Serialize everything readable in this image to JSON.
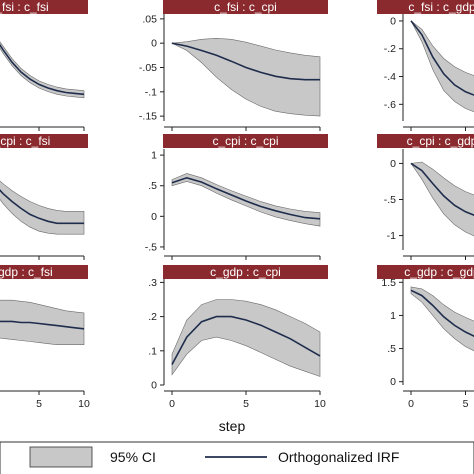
{
  "chart_data": {
    "type": "line",
    "xlabel": "step",
    "strip_color": "#8b2a2e",
    "band_color": "#c8c8c8",
    "line_color": "#1f2d4d",
    "legend": {
      "placement": "bottom",
      "ci_label": "95% CI",
      "irf_label": "Orthogonalized IRF"
    },
    "panels": [
      {
        "id": "r0c0",
        "title": "c_fsi : c_fsi",
        "show_xticks": false,
        "ylim": [
          -0.1,
          1.1
        ],
        "yticks": [],
        "ytick_labels": [],
        "x": [
          0,
          1,
          2,
          3,
          4,
          5,
          6,
          7,
          8,
          9,
          10
        ],
        "irf": [
          0.85,
          0.7,
          0.56,
          0.45,
          0.37,
          0.31,
          0.27,
          0.24,
          0.22,
          0.21,
          0.2
        ],
        "lower": [
          0.82,
          0.66,
          0.52,
          0.41,
          0.33,
          0.27,
          0.23,
          0.2,
          0.18,
          0.17,
          0.16
        ],
        "upper": [
          0.88,
          0.74,
          0.6,
          0.49,
          0.41,
          0.35,
          0.31,
          0.28,
          0.26,
          0.25,
          0.24
        ]
      },
      {
        "id": "r0c1",
        "title": "c_fsi : c_cpi",
        "show_xticks": false,
        "ylim": [
          -0.16,
          0.06
        ],
        "yticks": [
          0.05,
          0,
          -0.05,
          -0.1,
          -0.15
        ],
        "ytick_labels": [
          ".05",
          "0",
          "-.05",
          "-.1",
          "-.15"
        ],
        "x": [
          0,
          1,
          2,
          3,
          4,
          5,
          6,
          7,
          8,
          9,
          10
        ],
        "irf": [
          0,
          -0.006,
          -0.015,
          -0.025,
          -0.037,
          -0.05,
          -0.06,
          -0.068,
          -0.073,
          -0.075,
          -0.075
        ],
        "lower": [
          0,
          -0.015,
          -0.04,
          -0.07,
          -0.095,
          -0.115,
          -0.13,
          -0.14,
          -0.145,
          -0.148,
          -0.15
        ],
        "upper": [
          0,
          0.003,
          0.008,
          0.01,
          0.008,
          0.002,
          -0.006,
          -0.014,
          -0.02,
          -0.025,
          -0.028
        ]
      },
      {
        "id": "r0c2",
        "title": "c_fsi : c_gdp",
        "show_xticks": false,
        "ylim": [
          -0.72,
          0.05
        ],
        "yticks": [
          0,
          -0.2,
          -0.4,
          -0.6
        ],
        "ytick_labels": [
          "0",
          "-.2",
          "-.4",
          "-.6"
        ],
        "x": [
          0,
          1,
          2,
          3,
          4,
          5,
          6,
          7,
          8,
          9,
          10
        ],
        "irf": [
          0,
          -0.1,
          -0.26,
          -0.38,
          -0.46,
          -0.51,
          -0.54,
          -0.56,
          -0.57,
          -0.58,
          -0.58
        ],
        "lower": [
          0,
          -0.15,
          -0.35,
          -0.5,
          -0.58,
          -0.63,
          -0.66,
          -0.68,
          -0.69,
          -0.7,
          -0.7
        ],
        "upper": [
          0,
          -0.06,
          -0.18,
          -0.27,
          -0.33,
          -0.37,
          -0.4,
          -0.42,
          -0.43,
          -0.44,
          -0.44
        ]
      },
      {
        "id": "r1c0",
        "title": "c_cpi : c_fsi",
        "show_xticks": false,
        "ylim": [
          -0.12,
          0.9
        ],
        "yticks": [],
        "ytick_labels": [],
        "x": [
          0,
          1,
          2,
          3,
          4,
          5,
          6,
          7,
          8,
          9,
          10
        ],
        "irf": [
          0.55,
          0.45,
          0.37,
          0.3,
          0.24,
          0.2,
          0.17,
          0.15,
          0.15,
          0.15,
          0.15
        ],
        "lower": [
          0.47,
          0.35,
          0.25,
          0.17,
          0.11,
          0.07,
          0.05,
          0.04,
          0.04,
          0.04,
          0.04
        ],
        "upper": [
          0.63,
          0.55,
          0.48,
          0.42,
          0.37,
          0.33,
          0.3,
          0.28,
          0.27,
          0.27,
          0.27
        ]
      },
      {
        "id": "r1c1",
        "title": "c_cpi : c_cpi",
        "show_xticks": false,
        "ylim": [
          -0.55,
          1.1
        ],
        "yticks": [
          1,
          0.5,
          0,
          -0.5
        ],
        "ytick_labels": [
          "1",
          ".5",
          "0",
          "-.5"
        ],
        "x": [
          0,
          1,
          2,
          3,
          4,
          5,
          6,
          7,
          8,
          9,
          10
        ],
        "irf": [
          0.55,
          0.63,
          0.56,
          0.45,
          0.35,
          0.25,
          0.16,
          0.09,
          0.03,
          -0.02,
          -0.04
        ],
        "lower": [
          0.5,
          0.57,
          0.5,
          0.38,
          0.27,
          0.17,
          0.07,
          -0.01,
          -0.07,
          -0.12,
          -0.16
        ],
        "upper": [
          0.6,
          0.7,
          0.63,
          0.52,
          0.42,
          0.33,
          0.24,
          0.17,
          0.12,
          0.08,
          0.06
        ]
      },
      {
        "id": "r1c2",
        "title": "c_cpi : c_gdp",
        "show_xticks": false,
        "ylim": [
          -1.2,
          0.2
        ],
        "yticks": [
          0,
          -0.5,
          -1
        ],
        "ytick_labels": [
          "0",
          "-.5",
          "-1"
        ],
        "x": [
          0,
          1,
          2,
          3,
          4,
          5,
          6,
          7,
          8,
          9,
          10
        ],
        "irf": [
          0,
          -0.1,
          -0.28,
          -0.45,
          -0.58,
          -0.67,
          -0.73,
          -0.77,
          -0.8,
          -0.81,
          -0.82
        ],
        "lower": [
          0,
          -0.22,
          -0.48,
          -0.7,
          -0.85,
          -0.95,
          -1.02,
          -1.06,
          -1.09,
          -1.1,
          -1.1
        ],
        "upper": [
          0,
          0.02,
          -0.08,
          -0.2,
          -0.31,
          -0.39,
          -0.45,
          -0.49,
          -0.51,
          -0.53,
          -0.54
        ]
      },
      {
        "id": "r2c0",
        "title": "c_gdp : c_fsi",
        "show_xticks": true,
        "ylim": [
          -0.4,
          0.6
        ],
        "yticks": [],
        "ytick_labels": [],
        "x": [
          0,
          1,
          2,
          3,
          4,
          5,
          6,
          7,
          8,
          9,
          10
        ],
        "irf": [
          0.2,
          0.2,
          0.2,
          0.19,
          0.19,
          0.18,
          0.17,
          0.16,
          0.15,
          0.14,
          0.13
        ],
        "lower": [
          0.05,
          0.04,
          0.03,
          0.02,
          0.01,
          0.0,
          -0.01,
          -0.02,
          -0.02,
          -0.02,
          -0.02
        ],
        "upper": [
          0.4,
          0.4,
          0.4,
          0.39,
          0.38,
          0.36,
          0.34,
          0.32,
          0.3,
          0.29,
          0.28
        ]
      },
      {
        "id": "r2c1",
        "title": "c_gdp : c_cpi",
        "show_xticks": true,
        "ylim": [
          0,
          0.31
        ],
        "yticks": [
          0.3,
          0.2,
          0.1,
          0
        ],
        "ytick_labels": [
          ".3",
          ".2",
          ".1",
          "0"
        ],
        "x": [
          0,
          1,
          2,
          3,
          4,
          5,
          6,
          7,
          8,
          9,
          10
        ],
        "irf": [
          0.06,
          0.14,
          0.185,
          0.2,
          0.2,
          0.19,
          0.175,
          0.155,
          0.135,
          0.11,
          0.085
        ],
        "lower": [
          0.03,
          0.09,
          0.13,
          0.14,
          0.13,
          0.115,
          0.095,
          0.075,
          0.055,
          0.04,
          0.025
        ],
        "upper": [
          0.09,
          0.19,
          0.235,
          0.25,
          0.25,
          0.245,
          0.235,
          0.22,
          0.2,
          0.18,
          0.155
        ]
      },
      {
        "id": "r2c2",
        "title": "c_gdp : c_gdp",
        "show_xticks": true,
        "ylim": [
          -0.05,
          1.55
        ],
        "yticks": [
          1.5,
          1,
          0.5,
          0
        ],
        "ytick_labels": [
          "1.5",
          "1",
          ".5",
          "0"
        ],
        "x": [
          0,
          1,
          2,
          3,
          4,
          5,
          6,
          7,
          8,
          9,
          10
        ],
        "irf": [
          1.38,
          1.3,
          1.15,
          0.98,
          0.85,
          0.75,
          0.67,
          0.62,
          0.58,
          0.56,
          0.55
        ],
        "lower": [
          1.33,
          1.2,
          1.0,
          0.8,
          0.65,
          0.53,
          0.45,
          0.4,
          0.36,
          0.34,
          0.33
        ],
        "upper": [
          1.43,
          1.4,
          1.3,
          1.16,
          1.05,
          0.97,
          0.9,
          0.85,
          0.82,
          0.8,
          0.78
        ]
      }
    ],
    "xticks": [
      0,
      5,
      10
    ],
    "xtick_labels": [
      "0",
      "5",
      "10"
    ]
  }
}
